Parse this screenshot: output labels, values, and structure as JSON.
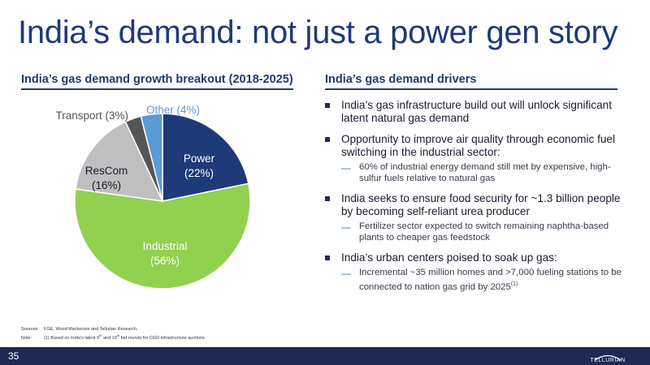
{
  "title": "India’s demand: not just a power gen story",
  "left_heading": "India’s gas demand growth breakout (2018-2025)",
  "right_heading": "India’s gas demand drivers",
  "chart_data": {
    "type": "pie",
    "title": "India’s gas demand growth breakout (2018-2025)",
    "slices": [
      {
        "label": "Power",
        "value_label": "(22%)",
        "value": 22,
        "color": "#1f3a78"
      },
      {
        "label": "Industrial",
        "value_label": "(56%)",
        "value": 56,
        "color": "#92d050"
      },
      {
        "label": "ResCom",
        "value_label": "(16%)",
        "value": 16,
        "color": "#bfbfbf"
      },
      {
        "label": "Transport (3%)",
        "value_label": "",
        "value": 3,
        "color": "#555555"
      },
      {
        "label": "Other (4%)",
        "value_label": "",
        "value": 4,
        "color": "#5b9bd5"
      }
    ]
  },
  "drivers": [
    {
      "text": "India’s gas infrastructure build out will unlock significant latent natural gas demand",
      "subs": []
    },
    {
      "text": "Opportunity to improve air quality through economic fuel switching in the industrial sector:",
      "subs": [
        "60% of industrial energy demand still met by expensive, high-sulfur fuels relative to natural gas"
      ]
    },
    {
      "text": "India seeks to ensure food security for ~1.3 billion people by becoming self-reliant urea producer",
      "subs": [
        "Fertilizer sector expected to switch remaining naphtha-based plants to cheaper gas feedstock"
      ]
    },
    {
      "text": "India’s urban centers poised to soak up gas:",
      "subs": [
        "Incremental ~35 million homes and >7,000 fueling stations to be connected to nation gas grid by 2025"
      ],
      "sub_footnote": "(1)"
    }
  ],
  "notes": {
    "sources_label": "Sources:",
    "sources_text": "FGE, Wood Mackenzie and Tellurian Research.",
    "note_label": "Note:",
    "note_text_1": "(1) Based on India’s latest 9",
    "note_sup_1": "th",
    "note_text_2": " and 10",
    "note_sup_2": "th",
    "note_text_3": " bid rounds for CGD infrastructure auctions."
  },
  "footer": {
    "page_number": "35",
    "logo_text": "TELLURIAN",
    "bar_color": "#1c2a54"
  }
}
